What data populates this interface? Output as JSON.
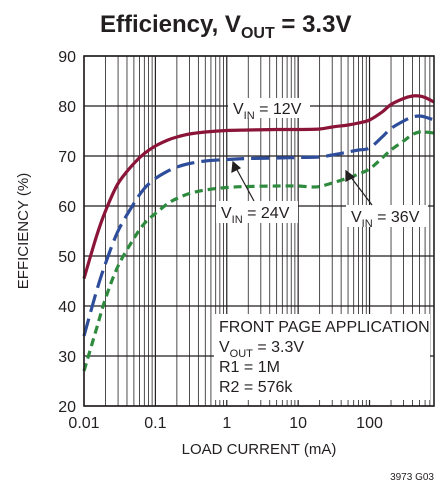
{
  "chart_data": {
    "type": "line",
    "title": {
      "prefix": "Efficiency, V",
      "sub": "OUT",
      "suffix": " = 3.3V"
    },
    "xlabel": "LOAD CURRENT (mA)",
    "ylabel": "EFFICIENCY (%)",
    "x_scale": "log",
    "xlim": [
      0.01,
      800
    ],
    "ylim": [
      20,
      90
    ],
    "x_ticks": [
      {
        "value": 0.01,
        "label": "0.01"
      },
      {
        "value": 0.1,
        "label": "0.1"
      },
      {
        "value": 1,
        "label": "1"
      },
      {
        "value": 10,
        "label": "10"
      },
      {
        "value": 100,
        "label": "100"
      }
    ],
    "y_ticks": [
      {
        "value": 20,
        "label": "20"
      },
      {
        "value": 30,
        "label": "30"
      },
      {
        "value": 40,
        "label": "40"
      },
      {
        "value": 50,
        "label": "50"
      },
      {
        "value": 60,
        "label": "60"
      },
      {
        "value": 70,
        "label": "70"
      },
      {
        "value": 80,
        "label": "80"
      },
      {
        "value": 90,
        "label": "90"
      }
    ],
    "grid": true,
    "series": [
      {
        "name": {
          "prefix": "V",
          "sub": "IN",
          "suffix": " = 12V"
        },
        "color": "#8b1538",
        "dash": "solid",
        "x": [
          0.01,
          0.015,
          0.02,
          0.03,
          0.05,
          0.07,
          0.1,
          0.15,
          0.2,
          0.3,
          0.5,
          1,
          2,
          5,
          10,
          20,
          30,
          50,
          70,
          100,
          150,
          200,
          300,
          400,
          500,
          600,
          800
        ],
        "y": [
          45.5,
          54,
          59,
          64.5,
          68.5,
          70.5,
          72,
          73.2,
          73.8,
          74.4,
          74.8,
          75.1,
          75.2,
          75.3,
          75.3,
          75.4,
          75.8,
          76.2,
          76.6,
          77.2,
          78.8,
          80.3,
          81.5,
          82,
          82,
          81.7,
          80.8
        ]
      },
      {
        "name": {
          "prefix": "V",
          "sub": "IN",
          "suffix": " = 24V"
        },
        "color": "#2e4d9b",
        "dash": "long-dash",
        "x": [
          0.01,
          0.015,
          0.02,
          0.03,
          0.05,
          0.07,
          0.1,
          0.15,
          0.2,
          0.3,
          0.5,
          1,
          2,
          5,
          10,
          20,
          30,
          50,
          70,
          100,
          150,
          200,
          300,
          400,
          500,
          600,
          800
        ],
        "y": [
          34,
          43,
          48.5,
          55,
          60.5,
          63.5,
          65.5,
          67,
          67.8,
          68.5,
          69,
          69.3,
          69.5,
          69.6,
          69.7,
          69.8,
          70.2,
          70.8,
          71.2,
          71.6,
          73.8,
          75.5,
          77,
          77.8,
          78,
          77.8,
          77.2
        ]
      },
      {
        "name": {
          "prefix": "V",
          "sub": "IN",
          "suffix": " = 36V"
        },
        "color": "#2e8b3e",
        "dash": "short-dash",
        "x": [
          0.01,
          0.015,
          0.02,
          0.03,
          0.05,
          0.07,
          0.1,
          0.15,
          0.2,
          0.3,
          0.5,
          1,
          2,
          5,
          10,
          15,
          20,
          30,
          50,
          70,
          100,
          150,
          200,
          300,
          400,
          500,
          600,
          800
        ],
        "y": [
          27,
          35.5,
          41.5,
          48,
          53.5,
          56.5,
          58.5,
          60.5,
          61.5,
          62.5,
          63.2,
          63.7,
          63.9,
          64,
          64,
          63.8,
          63.9,
          64.6,
          65.6,
          66.4,
          67.4,
          69.6,
          71.2,
          73,
          74.3,
          74.8,
          74.8,
          74.6
        ]
      }
    ],
    "annotations": [
      {
        "lines": [
          "FRONT PAGE APPLICATION"
        ]
      },
      {
        "prefix": "V",
        "sub": "OUT",
        "suffix": " = 3.3V"
      },
      {
        "text": "R1 = 1M"
      },
      {
        "text": "R2 = 576k"
      }
    ],
    "figure_code": "3973 G03"
  }
}
